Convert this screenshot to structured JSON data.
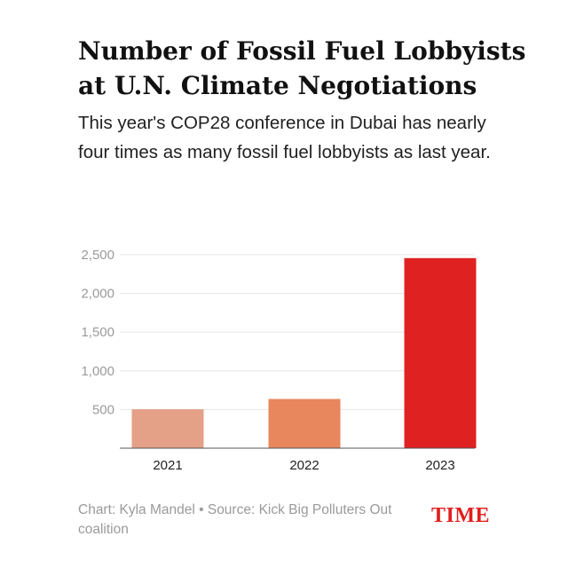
{
  "header": {
    "title": "Number of Fossil Fuel Lobbyists at U.N. Climate Negotiations",
    "subtitle": "This year's COP28 conference in Dubai has nearly four times as many fossil fuel lobbyists as last year."
  },
  "footer": {
    "credit": "Chart: Kyla Mandel • Source: Kick Big Polluters Out coalition",
    "logo": "TIME"
  },
  "colors": {
    "bar_2021": "#e5a088",
    "bar_2022": "#e8865e",
    "bar_2023": "#e02121",
    "grid": "#e6e6e6",
    "logo": "#e0201e"
  },
  "chart_data": {
    "type": "bar",
    "title": "Number of Fossil Fuel Lobbyists at U.N. Climate Negotiations",
    "xlabel": "",
    "ylabel": "",
    "categories": [
      "2021",
      "2022",
      "2023"
    ],
    "values": [
      503,
      636,
      2456
    ],
    "ylim": [
      0,
      2500
    ],
    "yticks": [
      500,
      1000,
      1500,
      2000,
      2500
    ],
    "ytick_labels": [
      "500",
      "1,000",
      "1,500",
      "2,000",
      "2,500"
    ],
    "grid": true,
    "legend": "none"
  }
}
